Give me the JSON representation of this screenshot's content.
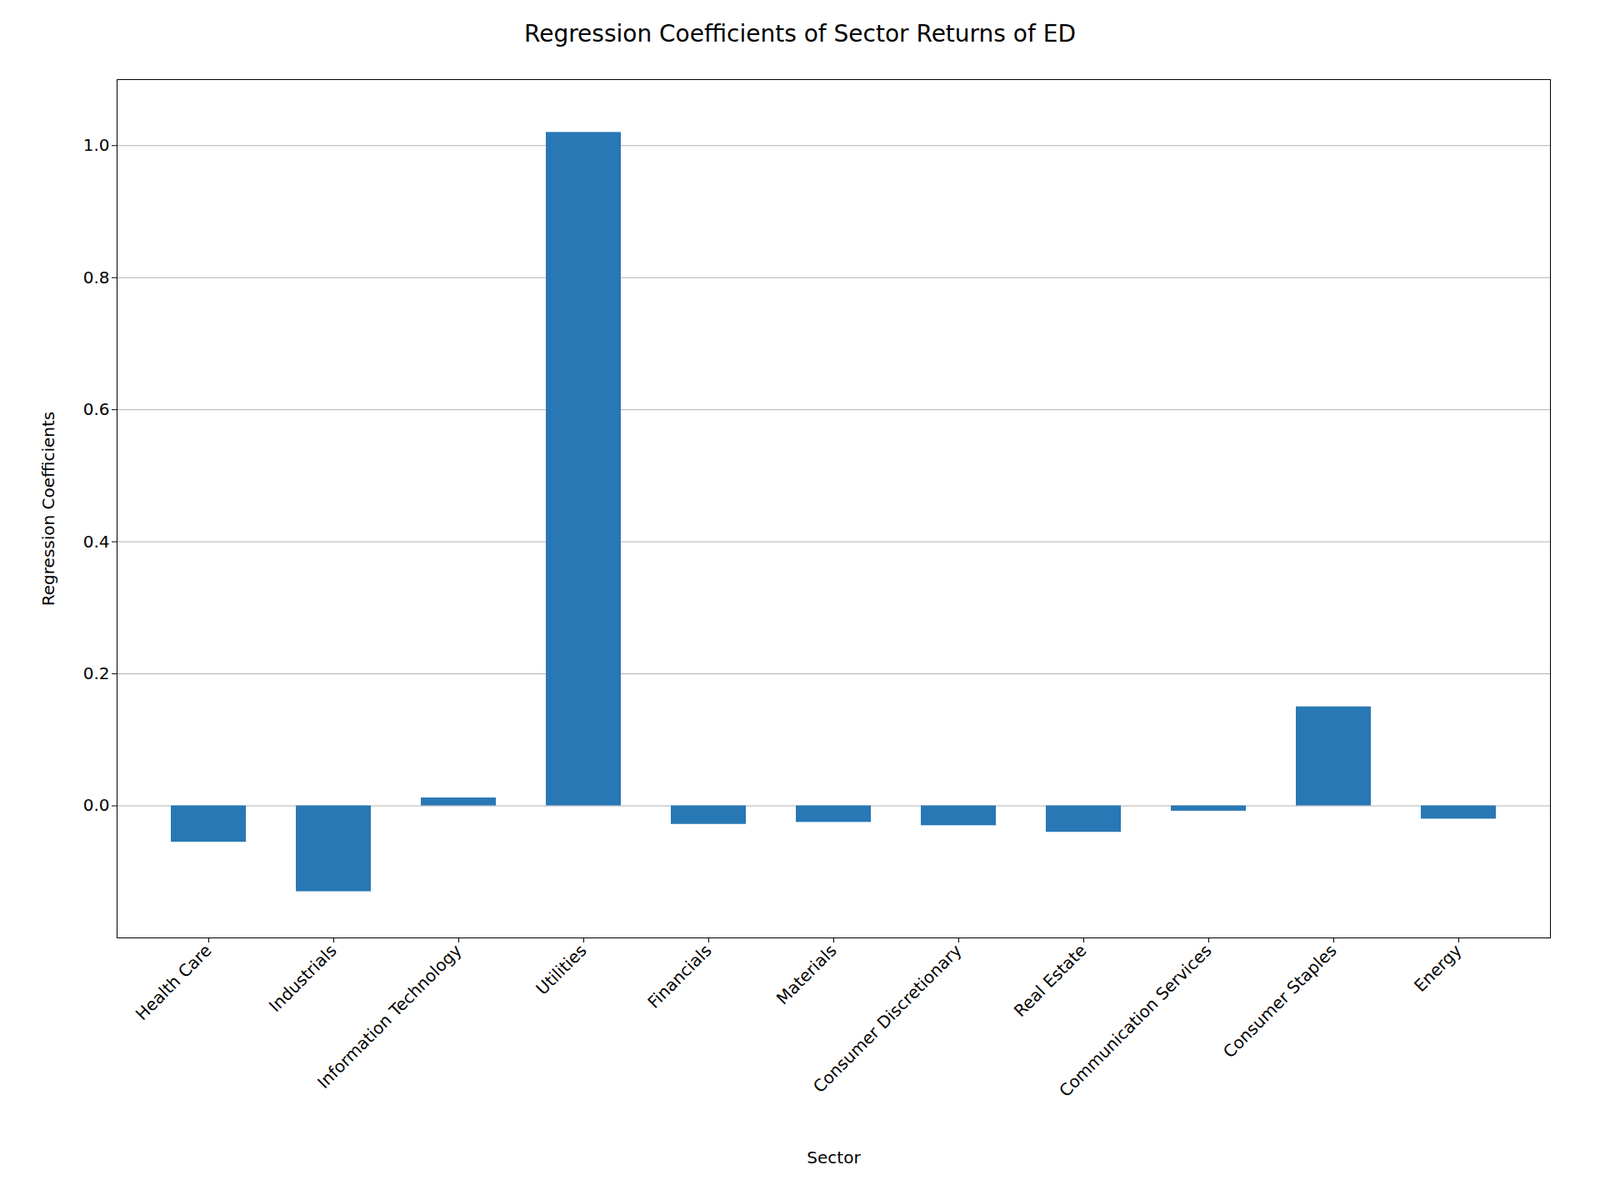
{
  "chart_data": {
    "type": "bar",
    "title": "Regression Coefficients of Sector Returns of ED",
    "xlabel": "Sector",
    "ylabel": "Regression Coefficients",
    "categories": [
      "Health Care",
      "Industrials",
      "Information Technology",
      "Utilities",
      "Financials",
      "Materials",
      "Consumer Discretionary",
      "Real Estate",
      "Communication Services",
      "Consumer Staples",
      "Energy"
    ],
    "values": [
      -0.055,
      -0.13,
      0.012,
      1.02,
      -0.028,
      -0.025,
      -0.03,
      -0.04,
      -0.008,
      0.15,
      -0.02
    ],
    "color": "#2878b5",
    "ylim": [
      -0.2,
      1.1
    ],
    "yticks": [
      {
        "value": 0,
        "label": "0.0"
      },
      0.2,
      0.4,
      0.6,
      0.8,
      {
        "value": 1,
        "label": "1.0"
      }
    ],
    "grid": true
  }
}
